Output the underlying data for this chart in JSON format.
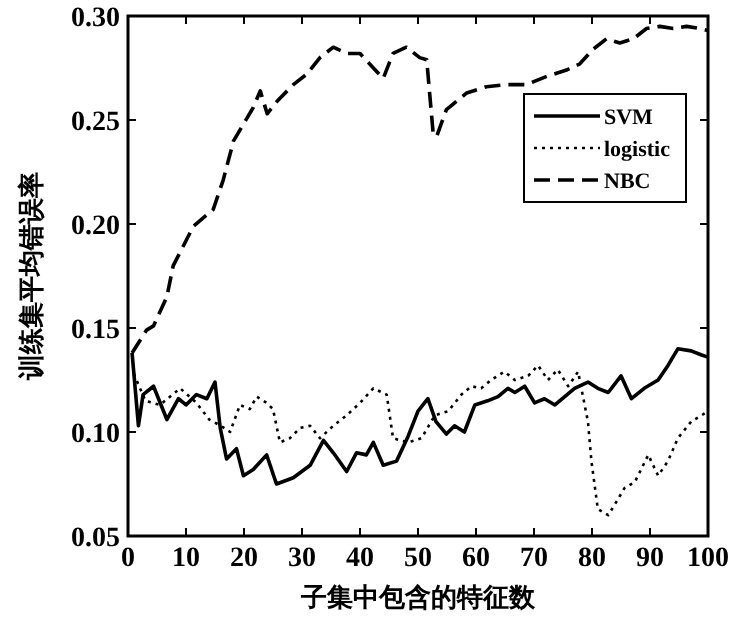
{
  "chart_data": {
    "type": "line",
    "xlabel": "子集中包含的特征数",
    "ylabel": "训练集平均错误率",
    "xlim": [
      0,
      100
    ],
    "xticks": [
      0,
      10,
      20,
      30,
      40,
      50,
      60,
      70,
      80,
      90,
      100
    ],
    "ylim": [
      0.05,
      0.3
    ],
    "yticks": [
      {
        "value": 0.05,
        "label": "0.05"
      },
      {
        "value": 0.1,
        "label": "0.10"
      },
      {
        "value": 0.15,
        "label": "0.15"
      },
      {
        "value": 0.2,
        "label": "0.20"
      },
      {
        "value": 0.25,
        "label": "0.25"
      },
      {
        "value": 0.3,
        "label": "0.30"
      }
    ],
    "legend": "top right",
    "marker": "none",
    "series": [
      {
        "name": "SVM",
        "color": "#000000",
        "line_style": "solid",
        "x": [
          0.7,
          1.8,
          2.6,
          4.4,
          6.7,
          8.7,
          10,
          11.8,
          13.6,
          15,
          15.9,
          17,
          18.7,
          19.9,
          21.6,
          23.9,
          25.6,
          28.5,
          31.4,
          33.7,
          35.4,
          37.7,
          39.4,
          41.1,
          42.3,
          44,
          46.3,
          48.3,
          50,
          51.7,
          53.1,
          54.9,
          56.3,
          58,
          59.8,
          62,
          63.8,
          65.5,
          66.7,
          68.4,
          70.1,
          71.8,
          73.6,
          75.3,
          77,
          79.3,
          81,
          82.8,
          85,
          86.8,
          89,
          91.4,
          93.1,
          94.8,
          97.1,
          98.9,
          100
        ],
        "values": [
          0.138,
          0.103,
          0.118,
          0.122,
          0.106,
          0.116,
          0.113,
          0.118,
          0.116,
          0.124,
          0.102,
          0.087,
          0.092,
          0.079,
          0.082,
          0.089,
          0.075,
          0.078,
          0.084,
          0.096,
          0.09,
          0.081,
          0.09,
          0.089,
          0.095,
          0.084,
          0.086,
          0.098,
          0.11,
          0.116,
          0.105,
          0.099,
          0.103,
          0.1,
          0.113,
          0.115,
          0.117,
          0.121,
          0.119,
          0.122,
          0.114,
          0.116,
          0.113,
          0.117,
          0.121,
          0.124,
          0.121,
          0.119,
          0.127,
          0.116,
          0.121,
          0.125,
          0.132,
          0.14,
          0.139,
          0.137,
          0.136
        ]
      },
      {
        "name": "logistic",
        "color": "#000000",
        "line_style": "dotted",
        "x": [
          1,
          3,
          5.5,
          9,
          11.8,
          14,
          16,
          17.6,
          19.3,
          21,
          22.2,
          23.9,
          25,
          26.2,
          27.9,
          29.7,
          31.4,
          33.1,
          35.4,
          37.7,
          40,
          42.3,
          44.6,
          45.7,
          48.3,
          50.6,
          52.9,
          55.2,
          57.5,
          59.2,
          60.9,
          62.6,
          64.9,
          66.7,
          69,
          70.7,
          72.4,
          74.1,
          75.9,
          77.6,
          79.3,
          79.9,
          81,
          82.8,
          83.9,
          85.6,
          87.4,
          89.7,
          91.4,
          93.1,
          94.8,
          97.1,
          98.9,
          100
        ],
        "values": [
          0.128,
          0.115,
          0.113,
          0.121,
          0.114,
          0.106,
          0.103,
          0.1,
          0.113,
          0.111,
          0.117,
          0.114,
          0.111,
          0.095,
          0.097,
          0.102,
          0.103,
          0.097,
          0.103,
          0.108,
          0.114,
          0.121,
          0.118,
          0.097,
          0.095,
          0.097,
          0.108,
          0.11,
          0.118,
          0.122,
          0.121,
          0.125,
          0.129,
          0.125,
          0.127,
          0.132,
          0.125,
          0.13,
          0.122,
          0.129,
          0.105,
          0.086,
          0.063,
          0.06,
          0.065,
          0.073,
          0.076,
          0.089,
          0.079,
          0.086,
          0.097,
          0.105,
          0.108,
          0.11
        ]
      },
      {
        "name": "NBC",
        "color": "#000000",
        "line_style": "dashed",
        "x": [
          0.7,
          3.2,
          4.4,
          6.7,
          7.8,
          11.3,
          14.7,
          16.4,
          18.2,
          19.9,
          21.6,
          22.8,
          24,
          25.7,
          28.5,
          30.8,
          33.1,
          35.4,
          37.7,
          40,
          42.3,
          44,
          45.7,
          48,
          50.3,
          51.5,
          52.6,
          53.2,
          54.9,
          58.4,
          61.8,
          65.3,
          68.7,
          72.2,
          75.6,
          77.9,
          80.2,
          82.5,
          84.8,
          87.1,
          89.4,
          91.7,
          94,
          96.3,
          98.6,
          100
        ],
        "values": [
          0.138,
          0.149,
          0.151,
          0.165,
          0.18,
          0.199,
          0.207,
          0.221,
          0.24,
          0.248,
          0.256,
          0.264,
          0.253,
          0.259,
          0.267,
          0.272,
          0.28,
          0.285,
          0.282,
          0.282,
          0.275,
          0.27,
          0.282,
          0.285,
          0.28,
          0.279,
          0.244,
          0.242,
          0.255,
          0.263,
          0.266,
          0.267,
          0.267,
          0.271,
          0.274,
          0.277,
          0.284,
          0.289,
          0.287,
          0.289,
          0.294,
          0.295,
          0.294,
          0.295,
          0.294,
          0.293
        ]
      }
    ]
  }
}
